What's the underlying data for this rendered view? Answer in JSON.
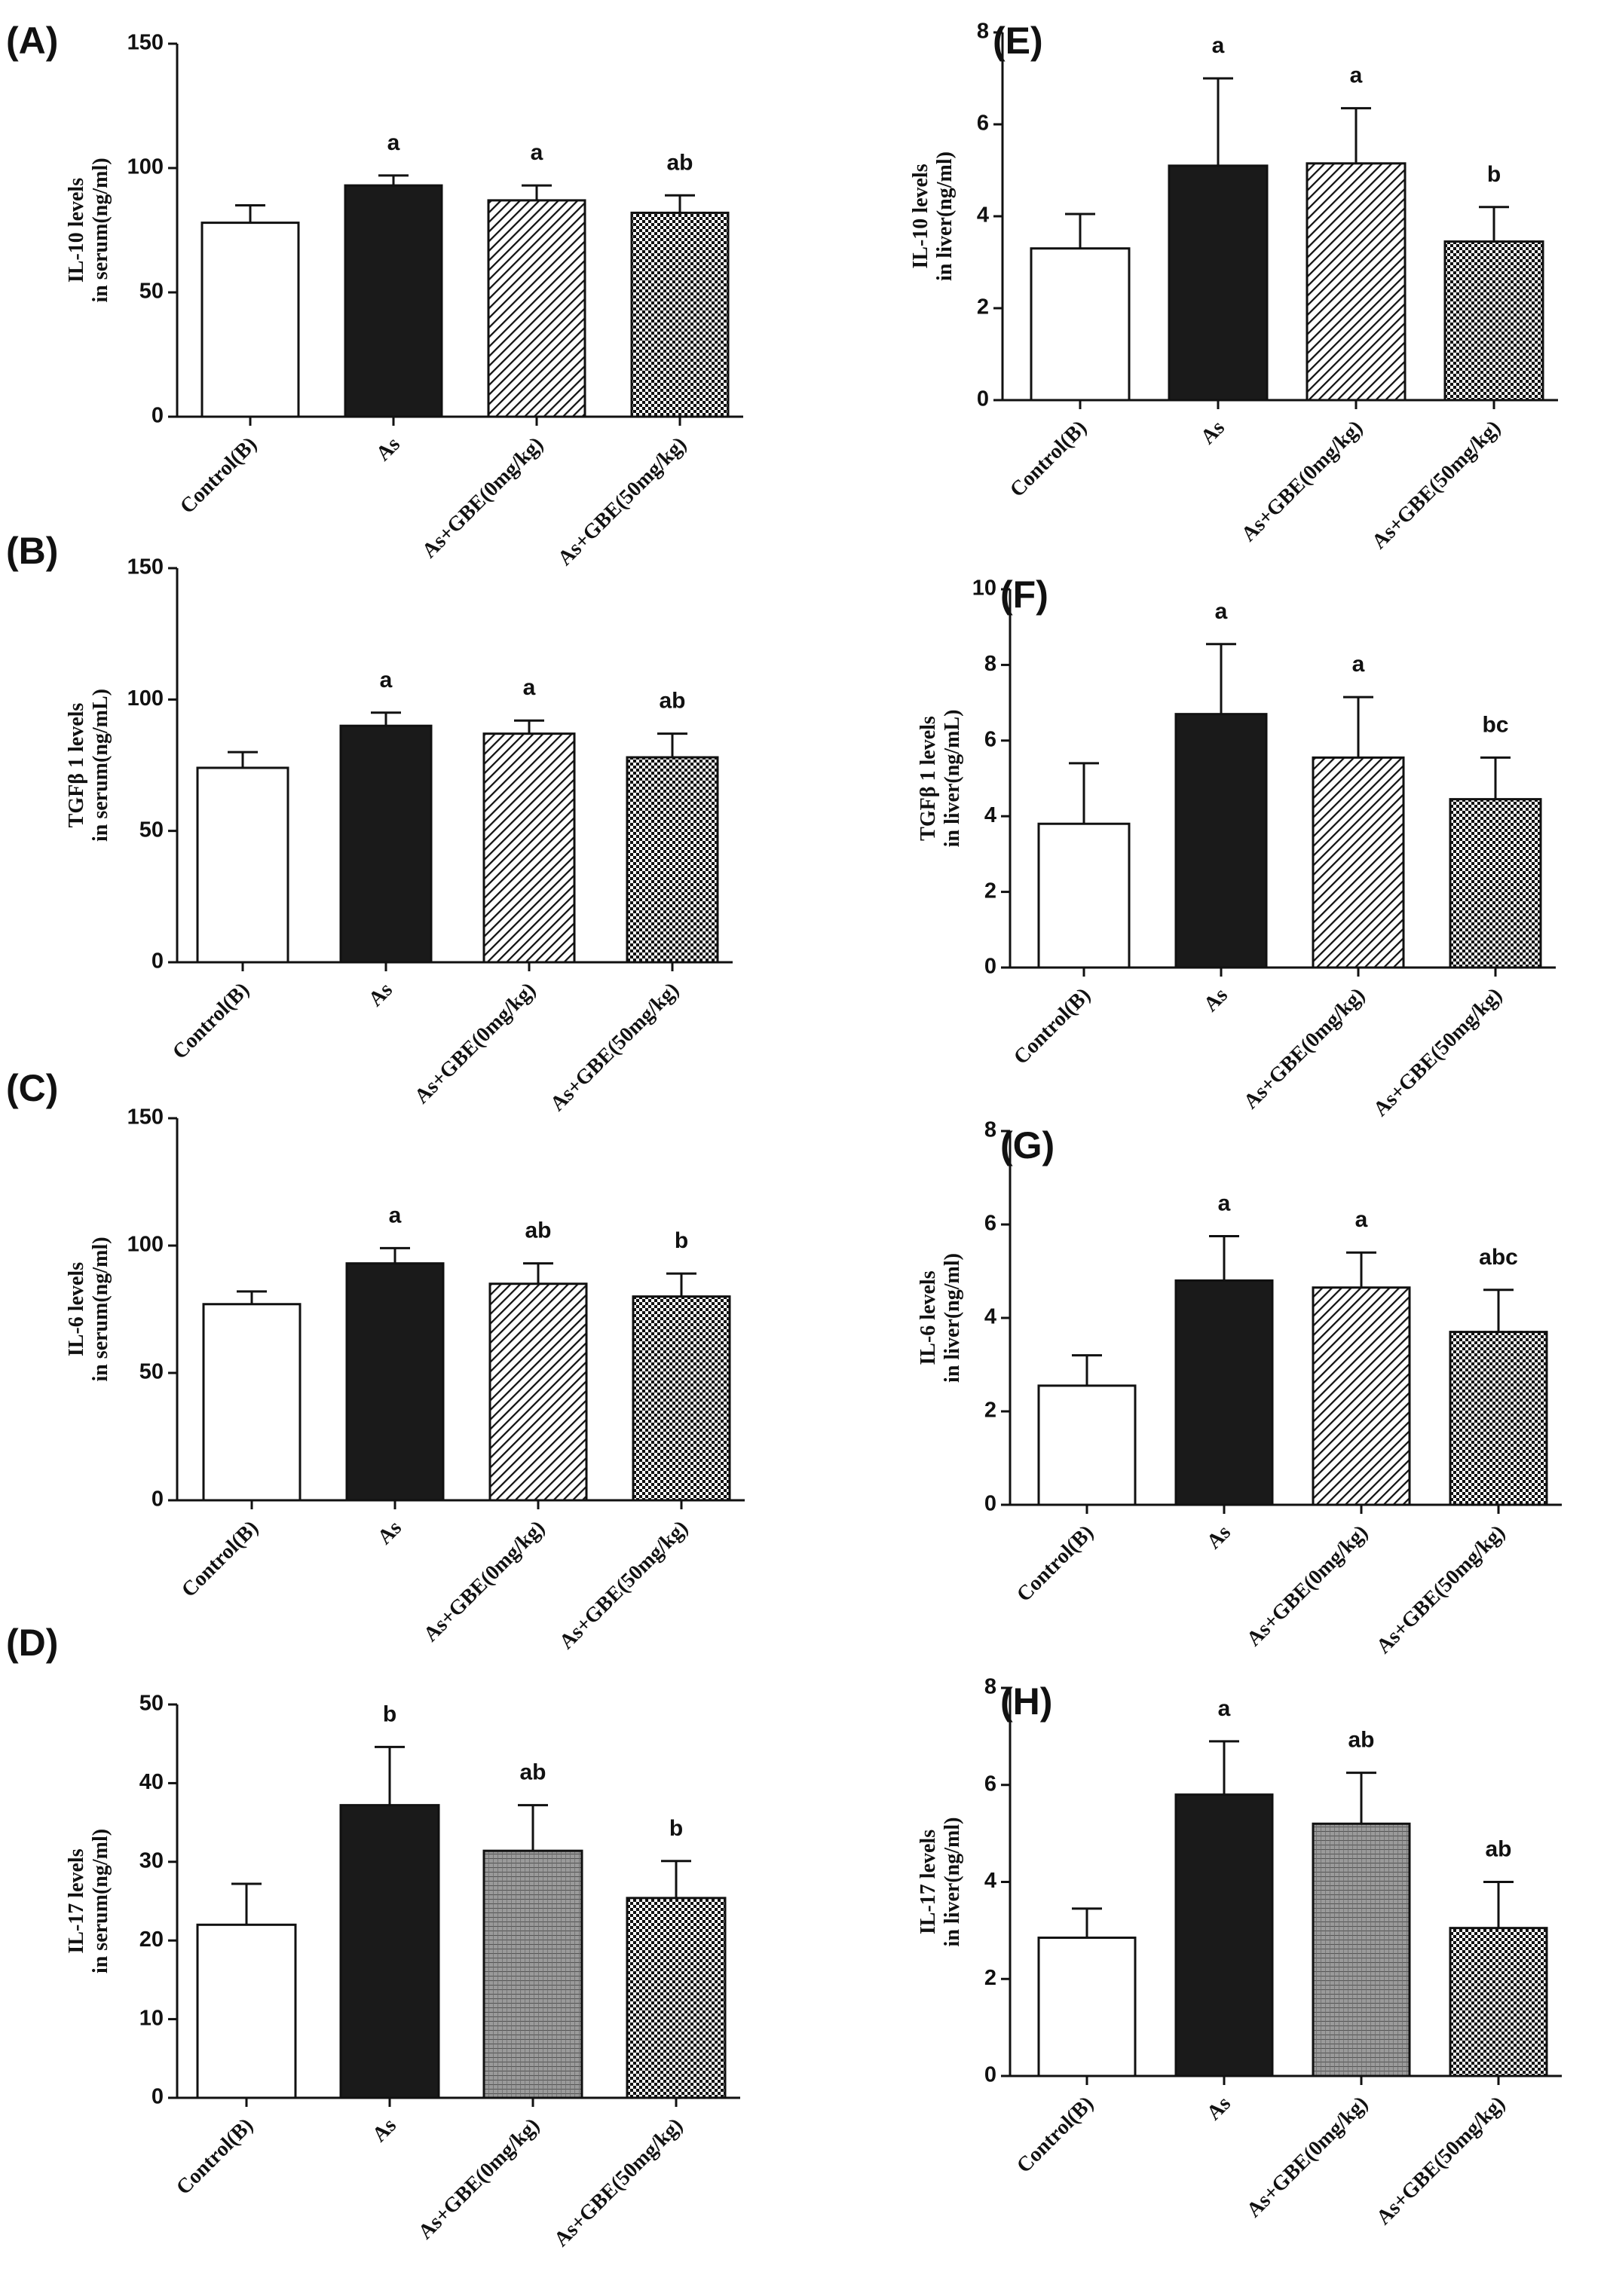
{
  "colors": {
    "ink": "#111111",
    "control_fill": "#ffffff",
    "as_fill": "#1a1a1a"
  },
  "chart_data": [
    {
      "panel": "(A)",
      "type": "bar",
      "categories": [
        "Control(B)",
        "As",
        "As+GBE(0mg/kg)",
        "As+GBE(50mg/kg)"
      ],
      "values": [
        78,
        93,
        87,
        82
      ],
      "errors": [
        7,
        4,
        6,
        7
      ],
      "significance": [
        "",
        "a",
        "a",
        "ab"
      ],
      "ylabel": [
        "IL-10 levels",
        "in serum(ng/ml)"
      ],
      "ylim": [
        0,
        150
      ],
      "yticks": [
        0,
        50,
        100,
        150
      ],
      "fills": [
        "white",
        "black",
        "diagonal",
        "checker"
      ]
    },
    {
      "panel": "(B)",
      "type": "bar",
      "categories": [
        "Control(B)",
        "As",
        "As+GBE(0mg/kg)",
        "As+GBE(50mg/kg)"
      ],
      "values": [
        74,
        90,
        87,
        78
      ],
      "errors": [
        6,
        5,
        5,
        9
      ],
      "significance": [
        "",
        "a",
        "a",
        "ab"
      ],
      "ylabel": [
        "TGFβ 1 levels",
        "in serum(ng/mL)"
      ],
      "ylim": [
        0,
        150
      ],
      "yticks": [
        0,
        50,
        100,
        150
      ],
      "fills": [
        "white",
        "black",
        "diagonal",
        "checker"
      ]
    },
    {
      "panel": "(C)",
      "type": "bar",
      "categories": [
        "Control(B)",
        "As",
        "As+GBE(0mg/kg)",
        "As+GBE(50mg/kg)"
      ],
      "values": [
        77,
        93,
        85,
        80
      ],
      "errors": [
        5,
        6,
        8,
        9
      ],
      "significance": [
        "",
        "a",
        "ab",
        "b"
      ],
      "ylabel": [
        "IL-6 levels",
        "in serum(ng/ml)"
      ],
      "ylim": [
        0,
        150
      ],
      "yticks": [
        0,
        50,
        100,
        150
      ],
      "fills": [
        "white",
        "black",
        "diagonal",
        "checker"
      ]
    },
    {
      "panel": "(D)",
      "type": "bar",
      "categories": [
        "Control(B)",
        "As",
        "As+GBE(0mg/kg)",
        "As+GBE(50mg/kg)"
      ],
      "values": [
        22,
        37.2,
        31.4,
        25.4
      ],
      "errors": [
        5.2,
        7.4,
        5.8,
        4.7
      ],
      "significance": [
        "",
        "b",
        "ab",
        "b"
      ],
      "ylabel": [
        "IL-17 levels",
        "in serum(ng/ml)"
      ],
      "ylim": [
        0,
        50
      ],
      "yticks": [
        0,
        10,
        20,
        30,
        40,
        50
      ],
      "fills": [
        "white",
        "black",
        "grid",
        "checker"
      ]
    },
    {
      "panel": "(E)",
      "type": "bar",
      "categories": [
        "Control(B)",
        "As",
        "As+GBE(0mg/kg)",
        "As+GBE(50mg/kg)"
      ],
      "values": [
        3.3,
        5.1,
        5.15,
        3.45
      ],
      "errors": [
        0.75,
        1.9,
        1.2,
        0.75
      ],
      "significance": [
        "",
        "a",
        "a",
        "b"
      ],
      "ylabel": [
        "IL-10 levels",
        "in liver(ng/ml)"
      ],
      "ylim": [
        0,
        8
      ],
      "yticks": [
        0,
        2,
        4,
        6,
        8
      ],
      "fills": [
        "white",
        "black",
        "diagonal",
        "checker"
      ]
    },
    {
      "panel": "(F)",
      "type": "bar",
      "categories": [
        "Control(B)",
        "As",
        "As+GBE(0mg/kg)",
        "As+GBE(50mg/kg)"
      ],
      "values": [
        3.8,
        6.7,
        5.55,
        4.45
      ],
      "errors": [
        1.6,
        1.85,
        1.6,
        1.1
      ],
      "significance": [
        "",
        "a",
        "a",
        "bc"
      ],
      "ylabel": [
        "TGFβ 1 levels",
        "in liver(ng/mL)"
      ],
      "ylim": [
        0,
        10
      ],
      "yticks": [
        0,
        2,
        4,
        6,
        8,
        10
      ],
      "fills": [
        "white",
        "black",
        "diagonal",
        "checker"
      ]
    },
    {
      "panel": "(G)",
      "type": "bar",
      "categories": [
        "Control(B)",
        "As",
        "As+GBE(0mg/kg)",
        "As+GBE(50mg/kg)"
      ],
      "values": [
        2.55,
        4.8,
        4.65,
        3.7
      ],
      "errors": [
        0.65,
        0.95,
        0.75,
        0.9
      ],
      "significance": [
        "",
        "a",
        "a",
        "abc"
      ],
      "ylabel": [
        "IL-6 levels",
        "in liver(ng/ml)"
      ],
      "ylim": [
        0,
        8
      ],
      "yticks": [
        0,
        2,
        4,
        6,
        8
      ],
      "fills": [
        "white",
        "black",
        "diagonal",
        "checker"
      ]
    },
    {
      "panel": "(H)",
      "type": "bar",
      "categories": [
        "Control(B)",
        "As",
        "As+GBE(0mg/kg)",
        "As+GBE(50mg/kg)"
      ],
      "values": [
        2.85,
        5.8,
        5.2,
        3.05
      ],
      "errors": [
        0.6,
        1.1,
        1.05,
        0.95
      ],
      "significance": [
        "",
        "a",
        "ab",
        "ab"
      ],
      "ylabel": [
        "IL-17 levels",
        "in liver(ng/ml)"
      ],
      "ylim": [
        0,
        8
      ],
      "yticks": [
        0,
        2,
        4,
        6,
        8
      ],
      "fills": [
        "white",
        "black",
        "grid",
        "checker"
      ]
    }
  ]
}
